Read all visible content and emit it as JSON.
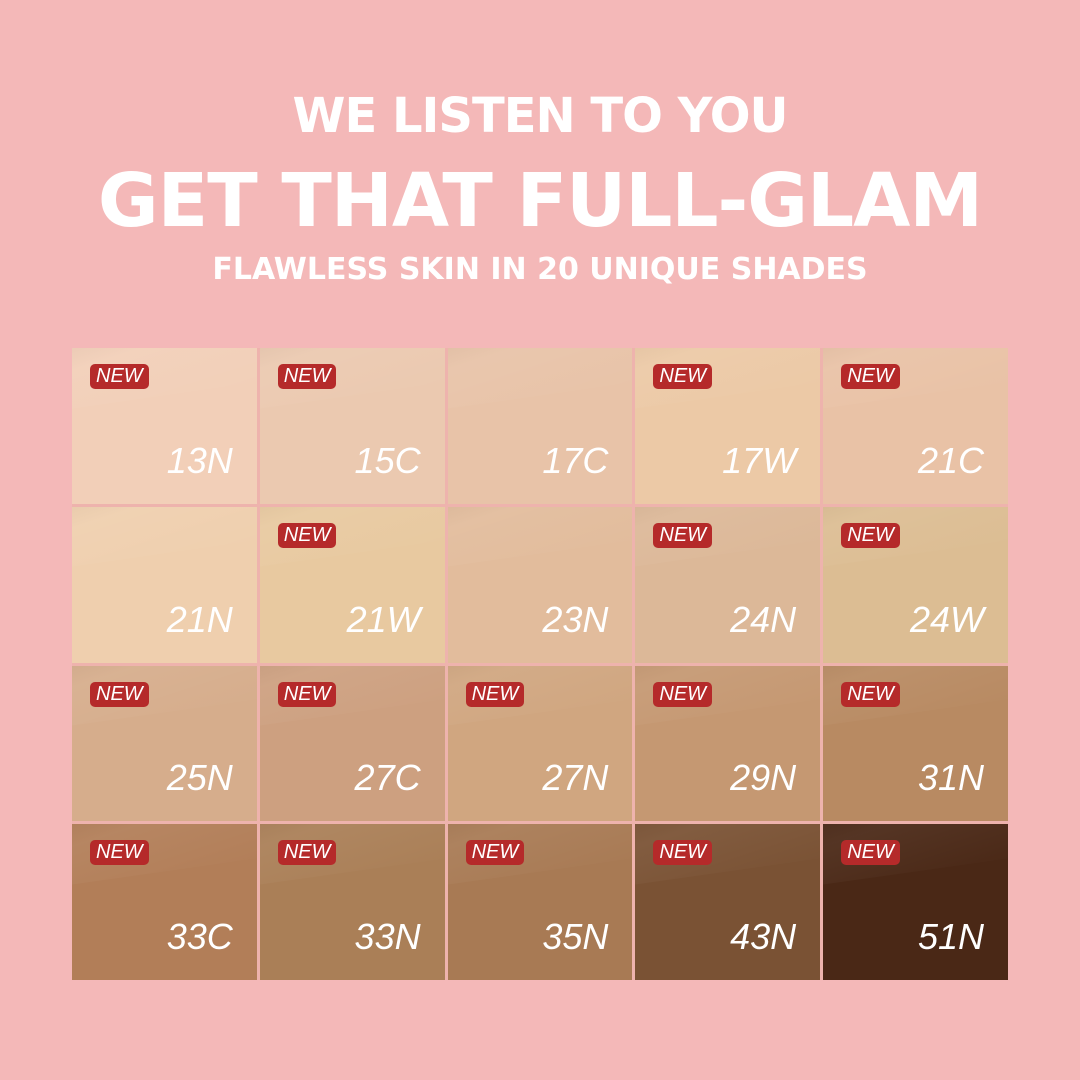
{
  "headline": {
    "line1": "WE LISTEN TO YOU",
    "line2": "GET THAT FULL-GLAM",
    "line3": "FLAWLESS SKIN IN 20 UNIQUE SHADES"
  },
  "badge_text": "NEW",
  "colors": {
    "background": "#f4b8b8",
    "badge": "#b52a2a"
  },
  "shades": [
    {
      "name": "13N",
      "color": "#f2cfb8",
      "is_new": true
    },
    {
      "name": "15C",
      "color": "#ebc9b0",
      "is_new": true
    },
    {
      "name": "17C",
      "color": "#e8c3a8",
      "is_new": false
    },
    {
      "name": "17W",
      "color": "#ecc9a6",
      "is_new": true
    },
    {
      "name": "21C",
      "color": "#e9c2a6",
      "is_new": true
    },
    {
      "name": "21N",
      "color": "#efcfae",
      "is_new": false
    },
    {
      "name": "21W",
      "color": "#e8c9a0",
      "is_new": true
    },
    {
      "name": "23N",
      "color": "#e2bc9c",
      "is_new": false
    },
    {
      "name": "24N",
      "color": "#dcb898",
      "is_new": true
    },
    {
      "name": "24W",
      "color": "#dcbd93",
      "is_new": true
    },
    {
      "name": "25N",
      "color": "#d6ad8c",
      "is_new": true
    },
    {
      "name": "27C",
      "color": "#cda080",
      "is_new": true
    },
    {
      "name": "27N",
      "color": "#d0a680",
      "is_new": true
    },
    {
      "name": "29N",
      "color": "#c59872",
      "is_new": true
    },
    {
      "name": "31N",
      "color": "#b88a62",
      "is_new": true
    },
    {
      "name": "33C",
      "color": "#b27e58",
      "is_new": true
    },
    {
      "name": "33N",
      "color": "#aa7f57",
      "is_new": true
    },
    {
      "name": "35N",
      "color": "#a87a54",
      "is_new": true
    },
    {
      "name": "43N",
      "color": "#7a5234",
      "is_new": true
    },
    {
      "name": "51N",
      "color": "#4a2816",
      "is_new": true
    }
  ]
}
